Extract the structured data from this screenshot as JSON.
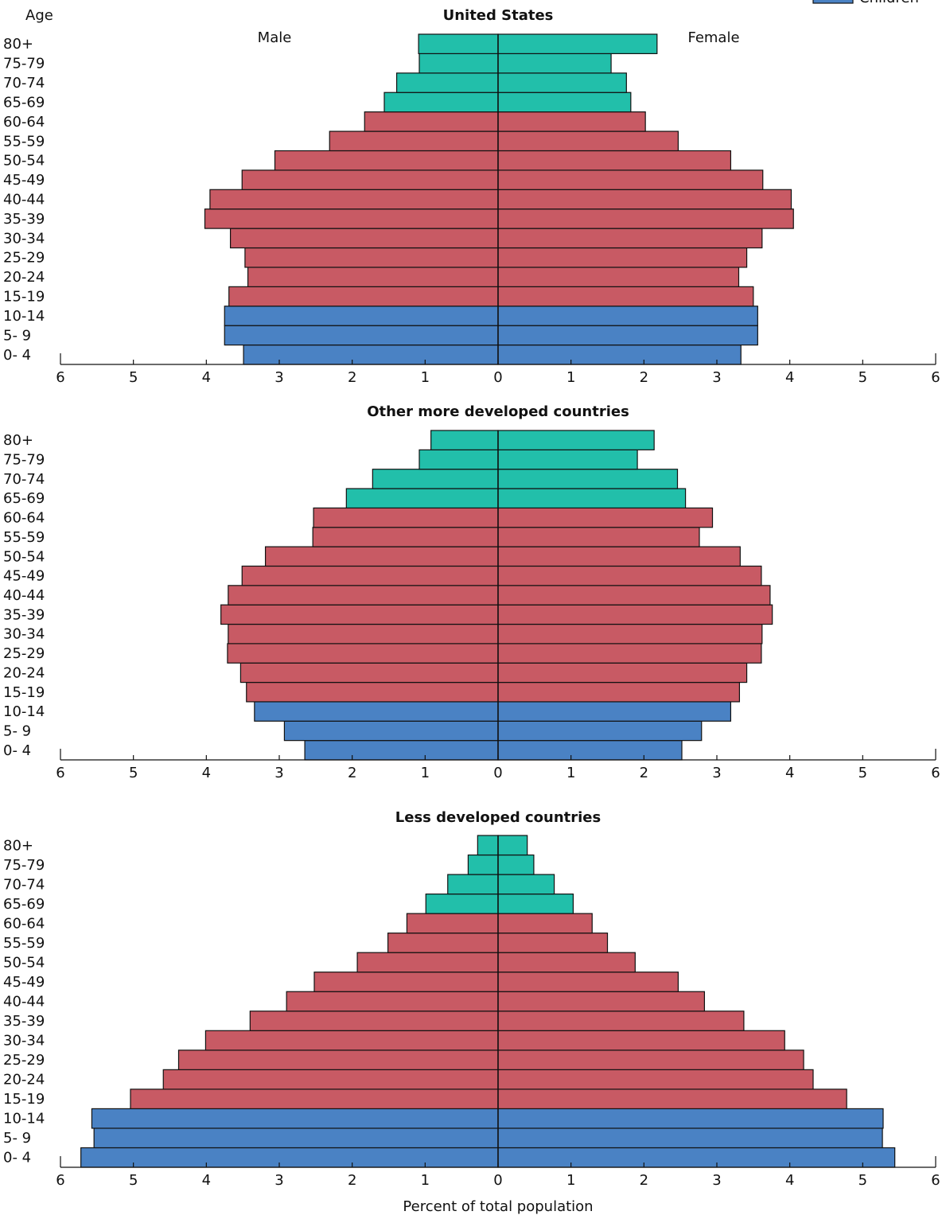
{
  "chart_data": [
    {
      "type": "pyramid",
      "title": "United States",
      "ylabel": "Age",
      "legend": [
        {
          "name": "Children",
          "color": "#4a82c4"
        }
      ],
      "legend_corner": "top-right",
      "categories": [
        "0- 4",
        "5- 9",
        "10-14",
        "15-19",
        "20-24",
        "25-29",
        "30-34",
        "35-39",
        "40-44",
        "45-49",
        "50-54",
        "55-59",
        "60-64",
        "65-69",
        "70-74",
        "75-79",
        "80+"
      ],
      "colors": [
        "#4a82c4",
        "#4a82c4",
        "#4a82c4",
        "#c85a64",
        "#c85a64",
        "#c85a64",
        "#c85a64",
        "#c85a64",
        "#c85a64",
        "#c85a64",
        "#c85a64",
        "#c85a64",
        "#c85a64",
        "#22bfaa",
        "#22bfaa",
        "#22bfaa",
        "#22bfaa"
      ],
      "series": [
        {
          "name": "Male",
          "values": [
            3.49,
            3.75,
            3.75,
            3.69,
            3.43,
            3.47,
            3.67,
            4.02,
            3.95,
            3.51,
            3.06,
            2.31,
            1.83,
            1.56,
            1.39,
            1.08,
            1.09
          ]
        },
        {
          "name": "Female",
          "values": [
            3.33,
            3.56,
            3.56,
            3.5,
            3.3,
            3.41,
            3.62,
            4.05,
            4.02,
            3.63,
            3.19,
            2.47,
            2.02,
            1.82,
            1.76,
            1.55,
            2.18
          ]
        }
      ],
      "xlim": [
        -6,
        6
      ],
      "xticks": [
        {
          "value": -6,
          "label": "6"
        },
        {
          "value": -5,
          "label": "5"
        },
        {
          "value": -4,
          "label": "4"
        },
        {
          "value": -3,
          "label": "3"
        },
        {
          "value": -2,
          "label": "2"
        },
        {
          "value": -1,
          "label": "1"
        },
        0,
        1,
        2,
        3,
        4,
        5,
        6
      ]
    },
    {
      "type": "pyramid",
      "title": "Other more developed countries",
      "categories": [
        "0- 4",
        "5- 9",
        "10-14",
        "15-19",
        "20-24",
        "25-29",
        "30-34",
        "35-39",
        "40-44",
        "45-49",
        "50-54",
        "55-59",
        "60-64",
        "65-69",
        "70-74",
        "75-79",
        "80+"
      ],
      "colors": [
        "#4a82c4",
        "#4a82c4",
        "#4a82c4",
        "#c85a64",
        "#c85a64",
        "#c85a64",
        "#c85a64",
        "#c85a64",
        "#c85a64",
        "#c85a64",
        "#c85a64",
        "#c85a64",
        "#c85a64",
        "#22bfaa",
        "#22bfaa",
        "#22bfaa",
        "#22bfaa"
      ],
      "series": [
        {
          "values": [
            2.65,
            2.93,
            3.34,
            3.45,
            3.53,
            3.71,
            3.7,
            3.8,
            3.7,
            3.51,
            3.19,
            2.54,
            2.53,
            2.08,
            1.72,
            1.08,
            0.92
          ]
        },
        {
          "values": [
            2.52,
            2.79,
            3.19,
            3.31,
            3.41,
            3.61,
            3.62,
            3.76,
            3.73,
            3.61,
            3.32,
            2.76,
            2.94,
            2.57,
            2.46,
            1.91,
            2.14
          ]
        }
      ],
      "xlim": [
        -6,
        6
      ],
      "xticks": [
        {
          "value": -6,
          "label": "6"
        },
        {
          "value": -5,
          "label": "5"
        },
        {
          "value": -4,
          "label": "4"
        },
        {
          "value": -3,
          "label": "3"
        },
        {
          "value": -2,
          "label": "2"
        },
        {
          "value": -1,
          "label": "1"
        },
        0,
        1,
        2,
        3,
        4,
        5,
        6
      ]
    },
    {
      "type": "pyramid",
      "title": "Less developed countries",
      "xlabel": "Percent of total population",
      "categories": [
        "0- 4",
        "5- 9",
        "10-14",
        "15-19",
        "20-24",
        "25-29",
        "30-34",
        "35-39",
        "40-44",
        "45-49",
        "50-54",
        "55-59",
        "60-64",
        "65-69",
        "70-74",
        "75-79",
        "80+"
      ],
      "colors": [
        "#4a82c4",
        "#4a82c4",
        "#4a82c4",
        "#c85a64",
        "#c85a64",
        "#c85a64",
        "#c85a64",
        "#c85a64",
        "#c85a64",
        "#c85a64",
        "#c85a64",
        "#c85a64",
        "#c85a64",
        "#22bfaa",
        "#22bfaa",
        "#22bfaa",
        "#22bfaa"
      ],
      "series": [
        {
          "values": [
            5.72,
            5.54,
            5.57,
            5.04,
            4.59,
            4.38,
            4.01,
            3.4,
            2.9,
            2.52,
            1.93,
            1.51,
            1.25,
            0.99,
            0.69,
            0.41,
            0.28
          ]
        },
        {
          "values": [
            5.44,
            5.27,
            5.28,
            4.78,
            4.32,
            4.19,
            3.93,
            3.37,
            2.83,
            2.47,
            1.88,
            1.5,
            1.29,
            1.03,
            0.77,
            0.49,
            0.4
          ]
        }
      ],
      "xlim": [
        -6,
        6
      ],
      "xticks": [
        {
          "value": -6,
          "label": "6"
        },
        {
          "value": -5,
          "label": "5"
        },
        {
          "value": -4,
          "label": "4"
        },
        {
          "value": -3,
          "label": "3"
        },
        {
          "value": -2,
          "label": "2"
        },
        {
          "value": -1,
          "label": "1"
        },
        0,
        1,
        2,
        3,
        4,
        5,
        6
      ]
    }
  ]
}
